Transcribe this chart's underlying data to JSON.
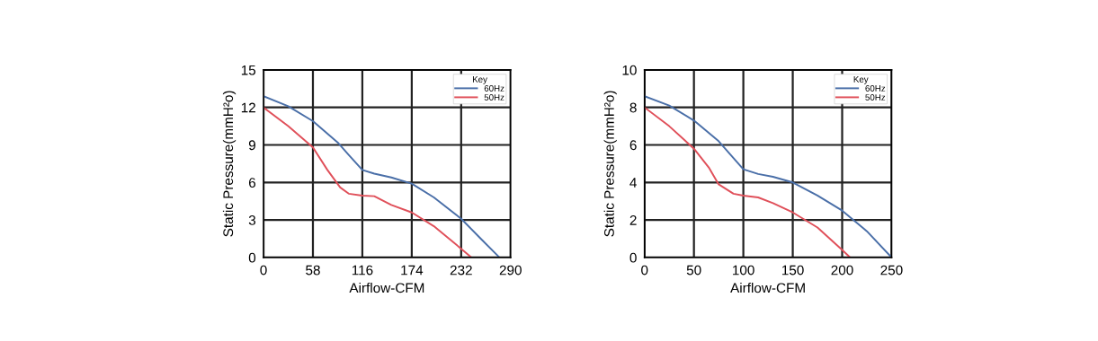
{
  "chart_data": [
    {
      "type": "line",
      "xlabel": "Airflow-CFM",
      "ylabel": "Static Pressure(mmH²o)",
      "legend_title": "Key",
      "legend": "top right",
      "grid": true,
      "xlim": [
        0,
        290
      ],
      "xticks": [
        0,
        58,
        116,
        174,
        232,
        290
      ],
      "ylim": [
        0,
        15
      ],
      "yticks": [
        0,
        3,
        6,
        9,
        12,
        15
      ],
      "series": [
        {
          "name": "60Hz",
          "color": "#4a6fa8",
          "x": [
            0,
            29,
            58,
            87,
            100,
            116,
            130,
            150,
            174,
            200,
            232,
            255,
            277
          ],
          "values": [
            12.9,
            12.1,
            10.9,
            9.2,
            8.2,
            7.0,
            6.7,
            6.4,
            5.9,
            4.8,
            3.1,
            1.5,
            0
          ]
        },
        {
          "name": "50Hz",
          "color": "#e0505a",
          "x": [
            0,
            29,
            58,
            75,
            90,
            100,
            116,
            130,
            150,
            174,
            200,
            232,
            244
          ],
          "values": [
            12,
            10.5,
            8.8,
            7.0,
            5.6,
            5.1,
            4.95,
            4.9,
            4.2,
            3.6,
            2.5,
            0.7,
            0
          ]
        }
      ]
    },
    {
      "type": "line",
      "xlabel": "Airflow-CFM",
      "ylabel": "Static Pressure(mmH²o)",
      "legend_title": "Key",
      "legend": "top right",
      "grid": true,
      "xlim": [
        0,
        250
      ],
      "xticks": [
        0,
        50,
        100,
        150,
        200,
        250
      ],
      "ylim": [
        0,
        10
      ],
      "yticks": [
        0,
        2,
        4,
        6,
        8,
        10
      ],
      "series": [
        {
          "name": "60Hz",
          "color": "#4a6fa8",
          "x": [
            0,
            25,
            50,
            75,
            90,
            100,
            115,
            130,
            150,
            175,
            200,
            225,
            250
          ],
          "values": [
            8.6,
            8.1,
            7.3,
            6.2,
            5.3,
            4.7,
            4.45,
            4.3,
            4.0,
            3.3,
            2.5,
            1.4,
            0
          ]
        },
        {
          "name": "50Hz",
          "color": "#e0505a",
          "x": [
            0,
            25,
            50,
            65,
            75,
            90,
            100,
            115,
            130,
            150,
            175,
            200,
            208
          ],
          "values": [
            8.0,
            7.0,
            5.8,
            4.8,
            3.9,
            3.4,
            3.3,
            3.2,
            2.9,
            2.4,
            1.6,
            0.4,
            0
          ]
        }
      ]
    }
  ]
}
